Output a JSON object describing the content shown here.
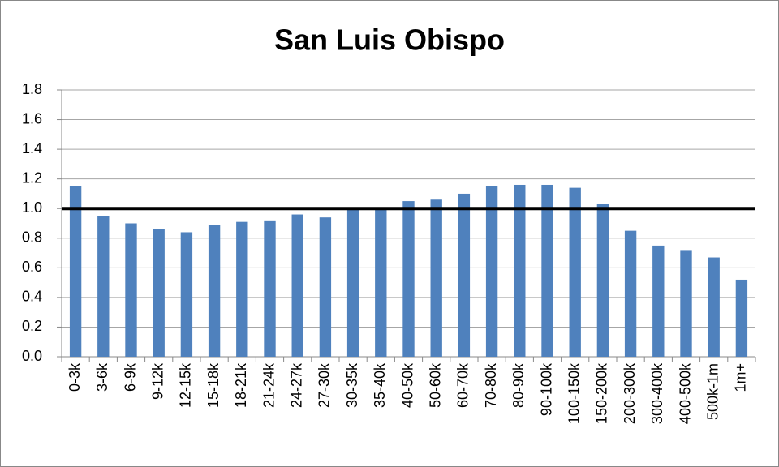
{
  "chart_data": {
    "type": "bar",
    "title": "San Luis Obispo",
    "categories": [
      "0-3k",
      "3-6k",
      "6-9k",
      "9-12k",
      "12-15k",
      "15-18k",
      "18-21k",
      "21-24k",
      "24-27k",
      "27-30k",
      "30-35k",
      "35-40k",
      "40-50k",
      "50-60k",
      "60-70k",
      "70-80k",
      "80-90k",
      "90-100k",
      "100-150k",
      "150-200k",
      "200-300k",
      "300-400k",
      "400-500k",
      "500k-1m",
      "1m+"
    ],
    "values": [
      1.15,
      0.95,
      0.9,
      0.86,
      0.84,
      0.89,
      0.91,
      0.92,
      0.96,
      0.94,
      1.0,
      1.0,
      1.05,
      1.06,
      1.1,
      1.15,
      1.16,
      1.16,
      1.14,
      1.03,
      0.85,
      0.75,
      0.72,
      0.67,
      0.52
    ],
    "color": "#4f81bd",
    "ylim": [
      0,
      1.8
    ],
    "yticks": [
      {
        "value": 0,
        "label": "0.0"
      },
      0.2,
      0.4,
      0.6,
      0.8,
      {
        "value": 1,
        "label": "1.0"
      },
      1.2,
      1.4,
      1.6,
      1.8
    ],
    "grid": true,
    "reference_line": 1
  }
}
